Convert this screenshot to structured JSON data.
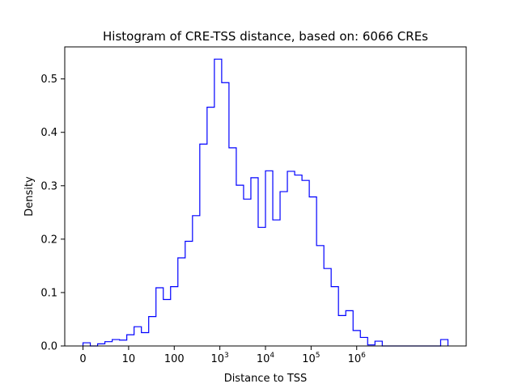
{
  "chart_data": {
    "type": "histogram",
    "title": "Histogram of CRE-TSS distance, based on: 6066 CREs",
    "xlabel": "Distance to TSS",
    "ylabel": "Density",
    "x_scale": "symlog (linear below 10, log10 above)",
    "xlim": [
      -0.4,
      8.4
    ],
    "ylim": [
      0,
      0.56
    ],
    "x_ticks": [
      {
        "value": 0,
        "label": "0"
      },
      {
        "value": 10,
        "label": "10"
      },
      {
        "value": 100,
        "label": "100"
      },
      {
        "value": 1000,
        "label_base": "10",
        "label_exp": "3"
      },
      {
        "value": 10000,
        "label_base": "10",
        "label_exp": "4"
      },
      {
        "value": 100000,
        "label_base": "10",
        "label_exp": "5"
      },
      {
        "value": 1000000,
        "label_base": "10",
        "label_exp": "6"
      }
    ],
    "y_ticks": [
      {
        "value": 0.0,
        "label": "0.0"
      },
      {
        "value": 0.1,
        "label": "0.1"
      },
      {
        "value": 0.2,
        "label": "0.2"
      },
      {
        "value": 0.3,
        "label": "0.3"
      },
      {
        "value": 0.4,
        "label": "0.4"
      },
      {
        "value": 0.5,
        "label": "0.5"
      }
    ],
    "bin_edges": [
      0.0,
      0.16,
      0.32,
      0.48,
      0.64,
      0.8,
      0.96,
      1.12,
      1.28,
      1.44,
      1.6,
      1.76,
      1.92,
      2.08,
      2.24,
      2.4,
      2.56,
      2.72,
      2.88,
      3.04,
      3.2,
      3.36,
      3.52,
      3.68,
      3.84,
      4.0,
      4.16,
      4.32,
      4.48,
      4.64,
      4.8,
      4.96,
      5.12,
      5.28,
      5.44,
      5.6,
      5.76,
      5.92,
      6.08,
      6.24,
      6.4,
      6.56,
      6.72,
      6.88,
      7.04,
      7.2,
      7.36,
      7.52,
      7.68,
      7.84,
      8.0
    ],
    "densities": [
      0.006,
      0.0,
      0.004,
      0.008,
      0.012,
      0.011,
      0.021,
      0.036,
      0.025,
      0.055,
      0.109,
      0.087,
      0.111,
      0.165,
      0.196,
      0.244,
      0.378,
      0.447,
      0.537,
      0.493,
      0.371,
      0.301,
      0.275,
      0.315,
      0.222,
      0.328,
      0.236,
      0.289,
      0.327,
      0.32,
      0.31,
      0.279,
      0.188,
      0.145,
      0.111,
      0.057,
      0.066,
      0.029,
      0.016,
      0.002,
      0.009,
      0.0,
      0.0,
      0.0,
      0.0,
      0.0,
      0.0,
      0.0,
      0.0,
      0.012
    ],
    "line_color": "#0000ff",
    "grid": false,
    "legend": "none"
  }
}
